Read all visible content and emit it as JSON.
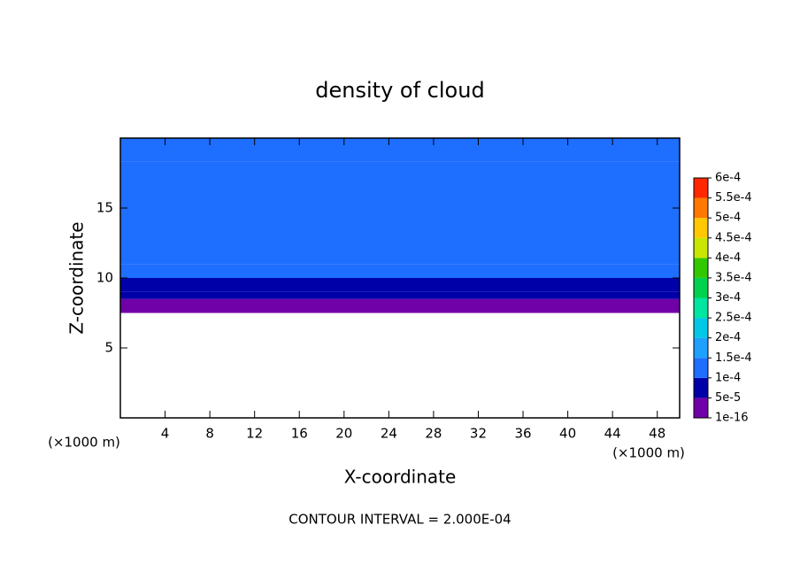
{
  "chart_data": {
    "type": "contour",
    "title": "density of cloud",
    "x_label": "X-coordinate",
    "y_label": "Z-coordinate",
    "x_unit_label": "(×1000 m)",
    "y_unit_label": "(×1000 m)",
    "note": "CONTOUR INTERVAL = 2.000E-04",
    "xlim": [
      0,
      50
    ],
    "ylim": [
      0,
      20
    ],
    "xticks": [
      4,
      8,
      12,
      16,
      20,
      24,
      28,
      32,
      36,
      40,
      44,
      48
    ],
    "yticks": [
      5,
      10,
      15
    ],
    "colorbar": {
      "levels": [
        1e-16,
        5e-05,
        0.0001,
        0.00015,
        0.0002,
        0.00025,
        0.0003,
        0.00035,
        0.0004,
        0.00045,
        0.0005,
        0.00055,
        0.0006
      ],
      "labels": [
        "1e-16",
        "5e-5",
        "1e-4",
        "1.5e-4",
        "2e-4",
        "2.5e-4",
        "3e-4",
        "3.5e-4",
        "4e-4",
        "4.5e-4",
        "5e-4",
        "5.5e-4",
        "6e-4"
      ],
      "colors": [
        "#7000a8",
        "#0000a8",
        "#1e6eff",
        "#1ea0ff",
        "#00c8e6",
        "#00e6a0",
        "#00d250",
        "#32c800",
        "#c8e600",
        "#ffc800",
        "#ff7800",
        "#ff2800",
        "#ff8c8c"
      ]
    },
    "profile": {
      "z_edges": [
        7.5,
        8.5,
        9.0,
        10.0,
        11.0,
        12.5,
        18.3,
        20
      ],
      "values": [
        3e-05,
        6e-05,
        8e-05,
        0.000105,
        0.00012,
        0.00014,
        0.00011
      ]
    }
  }
}
